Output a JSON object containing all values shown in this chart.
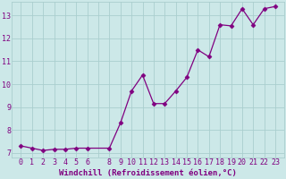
{
  "x": [
    0,
    1,
    2,
    3,
    4,
    5,
    6,
    8,
    9,
    10,
    11,
    12,
    13,
    14,
    15,
    16,
    17,
    18,
    19,
    20,
    21,
    22,
    23
  ],
  "y": [
    7.3,
    7.2,
    7.1,
    7.15,
    7.15,
    7.2,
    7.2,
    7.2,
    8.3,
    9.7,
    10.4,
    9.15,
    9.15,
    9.7,
    10.3,
    11.5,
    11.2,
    12.6,
    12.55,
    13.3,
    12.6,
    13.3,
    13.4
  ],
  "line_color": "#800080",
  "marker": "D",
  "marker_size": 2.5,
  "bg_color": "#cce8e8",
  "grid_color": "#aacece",
  "xlabel": "Windchill (Refroidissement éolien,°C)",
  "ylim": [
    6.8,
    13.6
  ],
  "xlim": [
    -0.8,
    23.8
  ],
  "yticks": [
    7,
    8,
    9,
    10,
    11,
    12,
    13
  ],
  "xticks": [
    0,
    1,
    2,
    3,
    4,
    5,
    6,
    8,
    9,
    10,
    11,
    12,
    13,
    14,
    15,
    16,
    17,
    18,
    19,
    20,
    21,
    22,
    23
  ],
  "label_fontsize": 6.5,
  "tick_fontsize": 6.0
}
